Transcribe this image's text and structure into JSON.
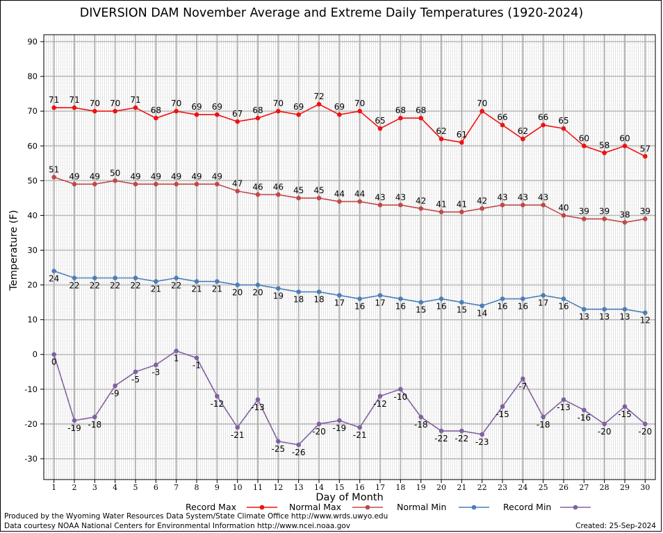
{
  "chart_data": {
    "type": "line",
    "title": "DIVERSION DAM November Average and Extreme Daily Temperatures (1920-2024)",
    "xlabel": "Day of Month",
    "ylabel": "Temperature (F)",
    "x": [
      1,
      2,
      3,
      4,
      5,
      6,
      7,
      8,
      9,
      10,
      11,
      12,
      13,
      14,
      15,
      16,
      17,
      18,
      19,
      20,
      21,
      22,
      23,
      24,
      25,
      26,
      27,
      28,
      29,
      30
    ],
    "xlim": [
      0.5,
      30.5
    ],
    "ylim": [
      -36,
      92
    ],
    "yticks": [
      -30,
      -20,
      -10,
      0,
      10,
      20,
      30,
      40,
      50,
      60,
      70,
      80,
      90
    ],
    "grid": true,
    "legend_position": "bottom",
    "series": [
      {
        "name": "Record Max",
        "color": "#ee1111",
        "label_pos": "above",
        "values": [
          71,
          71,
          70,
          70,
          71,
          68,
          70,
          69,
          69,
          67,
          68,
          70,
          69,
          72,
          69,
          70,
          65,
          68,
          68,
          62,
          61,
          70,
          66,
          62,
          66,
          65,
          60,
          58,
          60,
          57
        ]
      },
      {
        "name": "Normal Max",
        "color": "#c04848",
        "label_pos": "above",
        "values": [
          51,
          49,
          49,
          50,
          49,
          49,
          49,
          49,
          49,
          47,
          46,
          46,
          45,
          45,
          44,
          44,
          43,
          43,
          42,
          41,
          41,
          42,
          43,
          43,
          43,
          40,
          39,
          39,
          38,
          39
        ]
      },
      {
        "name": "Normal Min",
        "color": "#4a7eb5",
        "label_pos": "below",
        "values": [
          24,
          22,
          22,
          22,
          22,
          21,
          22,
          21,
          21,
          20,
          20,
          19,
          18,
          18,
          17,
          16,
          17,
          16,
          15,
          16,
          15,
          14,
          16,
          16,
          17,
          16,
          13,
          13,
          13,
          12
        ]
      },
      {
        "name": "Record Min",
        "color": "#8060a0",
        "label_pos": "below",
        "values": [
          0,
          -19,
          -18,
          -9,
          -5,
          -3,
          1,
          -1,
          -12,
          -21,
          -13,
          -25,
          -26,
          -20,
          -19,
          -21,
          -12,
          -10,
          -18,
          -22,
          -22,
          -23,
          -15,
          -7,
          -18,
          -13,
          -16,
          -20,
          -15,
          -20
        ]
      }
    ]
  },
  "footer": {
    "produced_by": "Produced by the Wyoming Water Resources Data System/State Climate Office http://www.wrds.uwyo.edu",
    "courtesy": "Data courtesy NOAA National Centers for Environmental Information http://www.ncei.noaa.gov",
    "created": "Created:  25-Sep-2024"
  }
}
